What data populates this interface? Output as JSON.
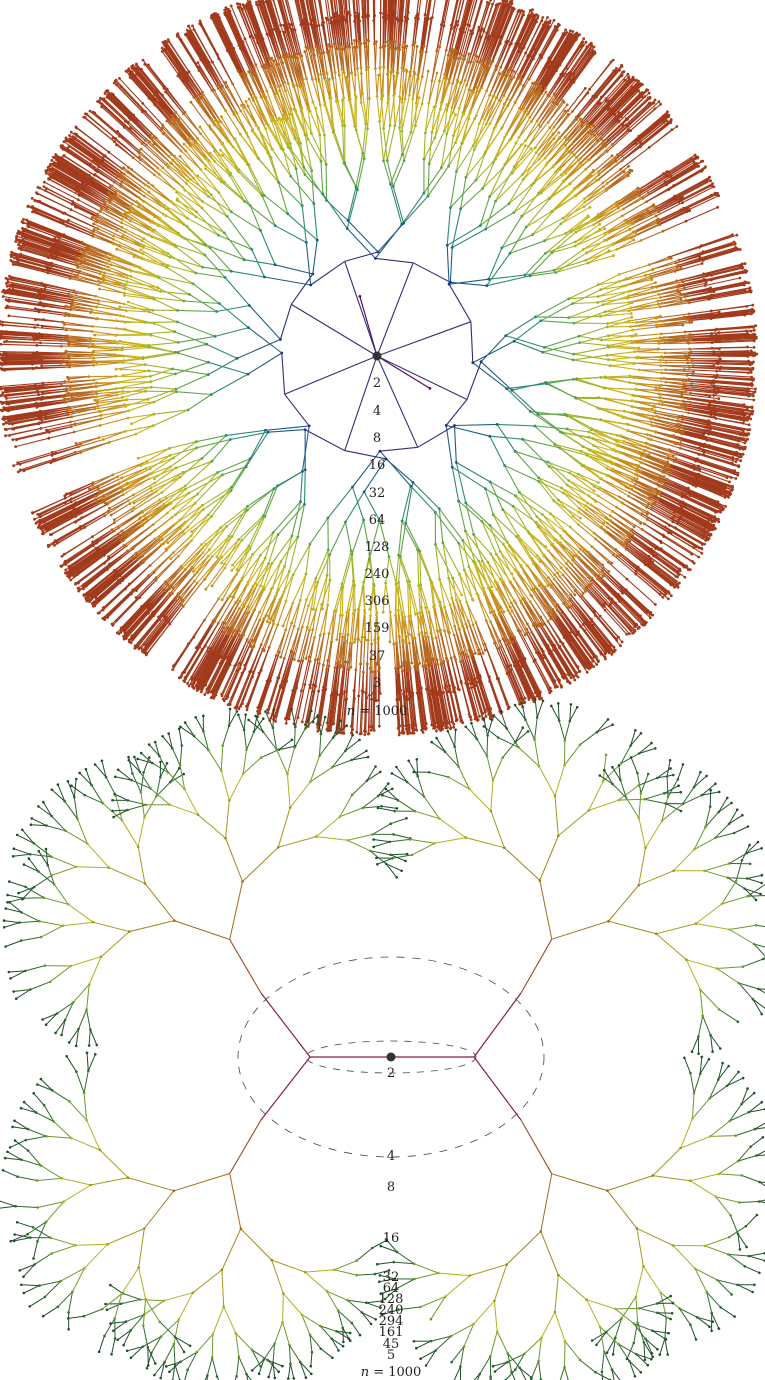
{
  "figures": [
    {
      "id": "top",
      "description": "Radial tree with root node, depth counts listed below the root",
      "depth_counts": [
        "2",
        "4",
        "8",
        "16",
        "32",
        "64",
        "128",
        "240",
        "306",
        "159",
        "37",
        "3"
      ],
      "n_prefix": "n",
      "n_text": " = 1000",
      "colors": [
        "#5a1057",
        "#2e2f7a",
        "#1f5d86",
        "#2f8a6e",
        "#5fa448",
        "#9fb52b",
        "#c6b21c",
        "#c8901a",
        "#b7681e",
        "#a23a1c"
      ]
    },
    {
      "id": "bottom",
      "description": "Hyperbolic-style radial tree with dashed circles",
      "depth_counts": [
        "2",
        "4",
        "8",
        "16",
        "32",
        "64",
        "128",
        "240",
        "294",
        "161",
        "45",
        "5"
      ],
      "n_prefix": "n",
      "n_text": " = 1000",
      "colors": [
        "#8a1f3a",
        "#9b4a22",
        "#a46a1a",
        "#a08417",
        "#a49a1c",
        "#b0b21f",
        "#6d9a2a",
        "#2f6a2a",
        "#1f4f2a"
      ]
    }
  ]
}
